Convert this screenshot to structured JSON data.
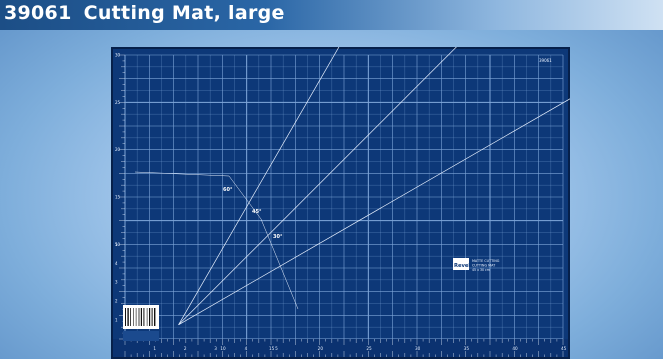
{
  "header": {
    "product_number": "39061",
    "product_name": "Cutting Mat, large"
  },
  "mat": {
    "background_color": "#0d3878",
    "border_color": "#06204a",
    "grid_color": "#7fa6d9",
    "line_color": "#e8f1ff",
    "bottom_ruler_labels": [
      "1",
      "2",
      "3",
      "4",
      "5",
      "10",
      "15",
      "20",
      "25",
      "30",
      "35",
      "40",
      "45"
    ],
    "left_ruler_labels": [
      "1",
      "2",
      "3",
      "4",
      "5",
      "10",
      "15",
      "20",
      "25",
      "30"
    ],
    "angle_labels": [
      "60°",
      "45°",
      "30°"
    ],
    "logo_text": "Revell",
    "logo_caption_line1": "MATTE CUTTING",
    "logo_caption_line2": "CUTTING MAT",
    "logo_caption_line3": "45 x 30 cm",
    "corner_code": "39061"
  }
}
